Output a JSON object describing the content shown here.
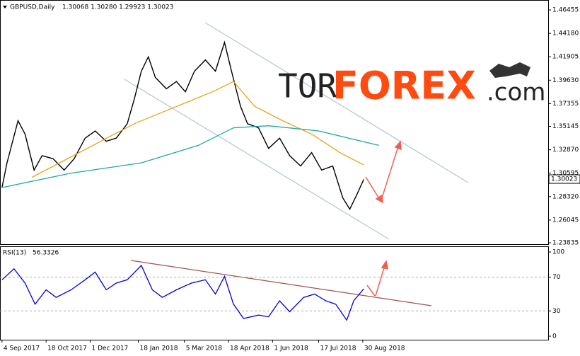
{
  "brand": {
    "part1": "TOR",
    "part2": "FOREX",
    "part3": ".com"
  },
  "chart_data": [
    {
      "type": "line",
      "title": "GBPUSD,Daily",
      "subtitle": "1.30068 1.30280 1.29923 1.30023",
      "xlim": [
        -2,
        545
      ],
      "ylim": [
        1.237,
        1.4742
      ],
      "yticks": [
        {
          "value": 1.46455,
          "label": "1.46455"
        },
        {
          "value": 1.4418,
          "label": "1.44180"
        },
        {
          "value": 1.41905,
          "label": "1.41905"
        },
        {
          "value": 1.3963,
          "label": "1.39630"
        },
        {
          "value": 1.37355,
          "label": "1.37355"
        },
        {
          "value": 1.35145,
          "label": "1.35145"
        },
        {
          "value": 1.3287,
          "label": "1.32870"
        },
        {
          "value": 1.30595,
          "label": "1.30595"
        },
        {
          "value": 1.2832,
          "label": "1.28320"
        },
        {
          "value": 1.26045,
          "label": "1.26045"
        },
        {
          "value": 1.23835,
          "label": "1.23835"
        }
      ],
      "current_price": {
        "value": 1.30023,
        "label": "1.30023"
      },
      "series": [
        {
          "color": "#000000",
          "x": [
            0,
            5,
            16,
            23,
            32,
            40,
            51,
            62,
            72,
            83,
            93,
            104,
            114,
            125,
            132,
            139,
            146,
            153,
            164,
            174,
            183,
            192,
            203,
            213,
            222,
            229,
            238,
            245,
            256,
            266,
            277,
            287,
            298,
            309,
            319,
            330,
            340,
            347,
            354,
            361
          ],
          "values": [
            1.292,
            1.316,
            1.357,
            1.344,
            1.309,
            1.323,
            1.32,
            1.309,
            1.32,
            1.34,
            1.347,
            1.337,
            1.34,
            1.354,
            1.378,
            1.405,
            1.419,
            1.399,
            1.388,
            1.395,
            1.385,
            1.405,
            1.416,
            1.405,
            1.433,
            1.405,
            1.371,
            1.354,
            1.35,
            1.33,
            1.34,
            1.323,
            1.313,
            1.326,
            1.309,
            1.313,
            1.282,
            1.271,
            1.285,
            1.3
          ]
        },
        {
          "color": "#e8a31c",
          "x": [
            30,
            132,
            210,
            231,
            252,
            280,
            309,
            337,
            361
          ],
          "values": [
            1.302,
            1.354,
            1.385,
            1.395,
            1.371,
            1.357,
            1.344,
            1.326,
            1.314
          ]
        },
        {
          "color": "#1fa89a",
          "x": [
            0,
            69,
            139,
            196,
            231,
            266,
            316,
            376
          ],
          "values": [
            1.292,
            1.306,
            1.316,
            1.333,
            1.35,
            1.352,
            1.347,
            1.333
          ]
        }
      ]
    },
    {
      "type": "line",
      "title": "RSI(13)",
      "last_value": 56.3326,
      "xlim": [
        -2,
        545
      ],
      "ylim": [
        -4.2,
        106.7
      ],
      "yticks": [
        100,
        70,
        30,
        0
      ],
      "levels": [
        70,
        30
      ],
      "xticks": [
        {
          "value": 0,
          "label": "4 Sep 2017"
        },
        {
          "value": 44,
          "label": "18 Oct 2017"
        },
        {
          "value": 88,
          "label": "1 Dec 2017"
        },
        {
          "value": 136,
          "label": "18 Jan 2018"
        },
        {
          "value": 182,
          "label": "5 Mar 2018"
        },
        {
          "value": 226,
          "label": "18 Apr 2018"
        },
        {
          "value": 270,
          "label": "1 Jun 2018"
        },
        {
          "value": 316,
          "label": "17 Jul 2018"
        },
        {
          "value": 360,
          "label": "30 Aug 2018"
        }
      ],
      "series": [
        {
          "color": "#0000dd",
          "x": [
            0,
            12,
            23,
            33,
            44,
            54,
            69,
            83,
            93,
            104,
            114,
            125,
            139,
            150,
            160,
            174,
            189,
            203,
            213,
            222,
            231,
            241,
            256,
            266,
            277,
            287,
            301,
            312,
            323,
            333,
            344,
            351,
            361
          ],
          "values": [
            67,
            80,
            63,
            38,
            55,
            46,
            55,
            67,
            76,
            55,
            63,
            67,
            84,
            55,
            46,
            55,
            63,
            67,
            50,
            71,
            38,
            21,
            25,
            23,
            42,
            29,
            46,
            50,
            42,
            38,
            19,
            42,
            56.3
          ]
        }
      ]
    }
  ]
}
